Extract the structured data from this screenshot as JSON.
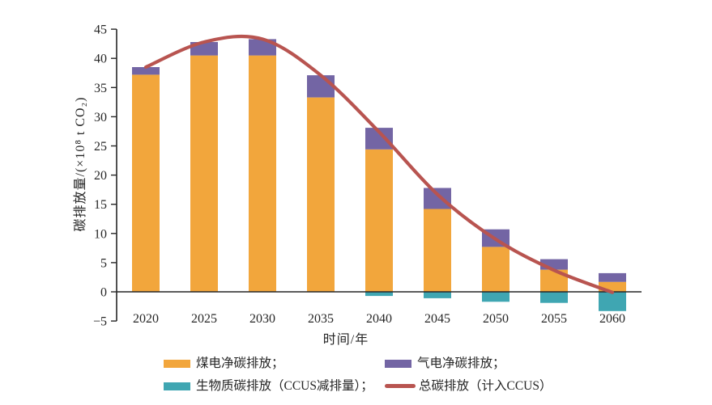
{
  "chart_data": {
    "type": "bar",
    "subtype": "stacked-bars-with-line-overlay",
    "title": "",
    "xlabel": "时间/年",
    "ylabel": "碳排放量/(×10⁸ t CO₂)",
    "categories": [
      "2020",
      "2025",
      "2030",
      "2035",
      "2040",
      "2045",
      "2050",
      "2055",
      "2060"
    ],
    "series": [
      {
        "key": "coal",
        "name": "煤电净碳排放",
        "color": "#F2A63C",
        "values": [
          37.2,
          40.5,
          40.5,
          33.3,
          24.4,
          14.2,
          7.7,
          3.8,
          1.7
        ]
      },
      {
        "key": "gas",
        "name": "气电净碳排放",
        "color": "#7365A4",
        "values": [
          1.3,
          2.3,
          2.8,
          3.8,
          3.7,
          3.6,
          3.0,
          1.8,
          1.5
        ]
      },
      {
        "key": "biomass",
        "name": "生物质碳排放（CCUS减排量）",
        "color": "#3FA6B2",
        "values": [
          0,
          0,
          0,
          0,
          -0.7,
          -1.1,
          -1.7,
          -1.9,
          -3.3
        ]
      }
    ],
    "line_series": {
      "key": "total",
      "name": "总碳排放（计入CCUS）",
      "color": "#B85450",
      "values": [
        38.5,
        42.8,
        43.3,
        37.1,
        27.4,
        16.7,
        9.0,
        3.7,
        -0.1
      ]
    },
    "ylim": [
      -5,
      45
    ],
    "yticks": [
      -5,
      0,
      5,
      10,
      15,
      20,
      25,
      30,
      35,
      40,
      45
    ],
    "grid": "off",
    "legend_position": "bottom"
  },
  "legend": {
    "items": [
      {
        "label": "煤电净碳排放；",
        "color": "#F2A63C",
        "marker": "box"
      },
      {
        "label": "气电净碳排放；",
        "color": "#7365A4",
        "marker": "box"
      },
      {
        "label": "生物质碳排放（CCUS减排量）；",
        "color": "#3FA6B2",
        "marker": "box"
      },
      {
        "label": "总碳排放（计入CCUS）",
        "color": "#B85450",
        "marker": "line"
      }
    ]
  },
  "colors": {
    "axis": "#262626",
    "text": "#262626",
    "background": "#FFFFFF"
  }
}
